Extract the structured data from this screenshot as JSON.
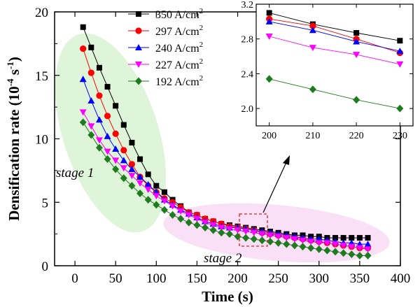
{
  "chart_data": [
    {
      "type": "scatter",
      "xlabel": "Time (s)",
      "ylabel": "Densification rate (10",
      "ylabel_sup": "-4",
      "ylabel_unit": "s",
      "ylabel_unit_sup": "-1",
      "ylabel_close": ")",
      "xlim": [
        -25,
        400
      ],
      "ylim": [
        0,
        20
      ],
      "xticks": [
        0,
        50,
        100,
        150,
        200,
        250,
        300,
        350,
        400
      ],
      "yticks": [
        0,
        5,
        10,
        15,
        20
      ],
      "legend_position": "top-center",
      "x": [
        10,
        20,
        30,
        40,
        50,
        60,
        70,
        80,
        90,
        100,
        110,
        120,
        130,
        140,
        150,
        160,
        170,
        180,
        190,
        200,
        210,
        220,
        230,
        240,
        250,
        260,
        270,
        280,
        290,
        300,
        310,
        320,
        330,
        340,
        350,
        360
      ],
      "series": [
        {
          "name": "350 A/cm",
          "sup": "2",
          "color": "#000000",
          "marker": "square",
          "values": [
            18.8,
            17.2,
            15.6,
            14.1,
            12.6,
            11.1,
            9.7,
            8.4,
            7.2,
            6.3,
            5.8,
            5.2,
            4.7,
            4.2,
            4.0,
            3.7,
            3.5,
            3.3,
            3.2,
            3.1,
            3.0,
            2.9,
            2.8,
            2.7,
            2.6,
            2.5,
            2.4,
            2.4,
            2.3,
            2.3,
            2.2,
            2.2,
            2.2,
            2.2,
            2.2,
            2.2
          ]
        },
        {
          "name": "297 A/cm",
          "sup": "2",
          "color": "#ff0000",
          "marker": "circle",
          "values": [
            17.1,
            15.2,
            13.4,
            11.8,
            10.4,
            9.1,
            8.0,
            7.0,
            6.3,
            5.8,
            5.3,
            5.0,
            4.6,
            4.2,
            4.0,
            3.7,
            3.5,
            3.3,
            3.1,
            3.0,
            2.9,
            2.8,
            2.6,
            2.5,
            2.4,
            2.3,
            2.2,
            2.1,
            2.0,
            1.9,
            1.8,
            1.7,
            1.6,
            1.5,
            1.4,
            1.4
          ]
        },
        {
          "name": "240 A/cm",
          "sup": "2",
          "color": "#0000ff",
          "marker": "triangle-up",
          "values": [
            14.7,
            13.0,
            11.5,
            10.2,
            9.2,
            8.3,
            7.6,
            7.0,
            6.4,
            5.8,
            5.2,
            4.8,
            4.4,
            4.1,
            3.8,
            3.5,
            3.3,
            3.1,
            3.0,
            3.0,
            2.9,
            2.8,
            2.7,
            2.6,
            2.5,
            2.4,
            2.3,
            2.2,
            2.1,
            2.1,
            2.0,
            1.9,
            1.8,
            1.8,
            1.7,
            1.7
          ]
        },
        {
          "name": "227 A/cm",
          "sup": "2",
          "color": "#ff00ff",
          "marker": "triangle-down",
          "values": [
            12.1,
            11.0,
            9.9,
            9.0,
            8.3,
            7.7,
            7.1,
            6.5,
            6.0,
            5.5,
            5.1,
            4.7,
            4.3,
            4.0,
            3.7,
            3.4,
            3.2,
            3.0,
            2.9,
            2.8,
            2.7,
            2.6,
            2.5,
            2.4,
            2.3,
            2.2,
            2.1,
            2.0,
            1.9,
            1.8,
            1.8,
            1.7,
            1.6,
            1.5,
            1.4,
            1.3
          ]
        },
        {
          "name": "192 A/cm",
          "sup": "2",
          "color": "#1e7b1e",
          "marker": "diamond",
          "values": [
            11.3,
            10.3,
            9.3,
            8.4,
            7.6,
            6.9,
            6.3,
            5.7,
            5.2,
            4.8,
            4.4,
            4.0,
            3.7,
            3.4,
            3.2,
            3.0,
            2.8,
            2.6,
            2.5,
            2.3,
            2.2,
            2.1,
            2.0,
            1.9,
            1.8,
            1.7,
            1.6,
            1.5,
            1.4,
            1.3,
            1.2,
            1.1,
            1.0,
            0.9,
            0.8,
            0.8
          ]
        }
      ],
      "annotations": [
        "stage 1",
        "stage 2"
      ]
    },
    {
      "type": "line",
      "position": "inset top-right",
      "xlim": [
        197,
        233
      ],
      "ylim": [
        1.8,
        3.2
      ],
      "xticks": [
        200,
        210,
        220,
        230
      ],
      "yticks": [
        2.0,
        2.4,
        2.8,
        3.2
      ],
      "ytick_labels": [
        "2.0",
        "2.4",
        "2.8",
        "3.2"
      ],
      "x": [
        200,
        210,
        220,
        230
      ],
      "series": [
        {
          "name": "350 A/cm",
          "color": "#000000",
          "marker": "square",
          "values": [
            3.1,
            2.97,
            2.87,
            2.78
          ]
        },
        {
          "name": "297 A/cm",
          "color": "#ff0000",
          "marker": "circle",
          "values": [
            3.03,
            2.95,
            2.8,
            2.64
          ]
        },
        {
          "name": "240 A/cm",
          "color": "#0000ff",
          "marker": "triangle-up",
          "values": [
            3.0,
            2.9,
            2.77,
            2.66
          ]
        },
        {
          "name": "227 A/cm",
          "color": "#ff00ff",
          "marker": "triangle-down",
          "values": [
            2.83,
            2.7,
            2.62,
            2.51
          ]
        },
        {
          "name": "192 A/cm",
          "color": "#1e7b1e",
          "marker": "diamond",
          "values": [
            2.34,
            2.22,
            2.1,
            2.0
          ]
        }
      ]
    }
  ]
}
